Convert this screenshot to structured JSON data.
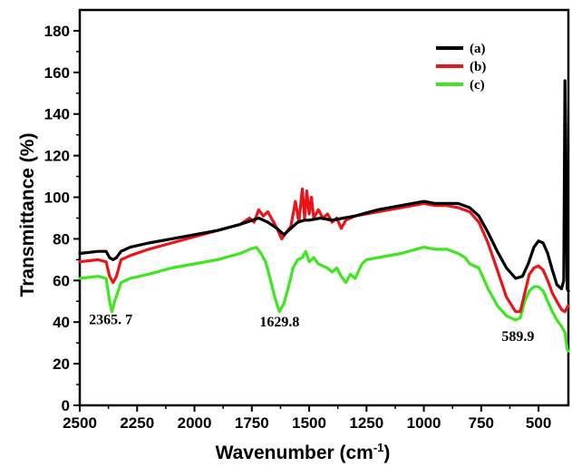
{
  "chart_data": {
    "type": "line",
    "xlabel": "Wavenumber (cm",
    "xlabel_sup": "-1",
    "xlabel_suffix": ")",
    "ylabel": "Transmittance (%)",
    "xlim": [
      2500,
      370
    ],
    "ylim": [
      0,
      190
    ],
    "x_reversed": true,
    "x_ticks": [
      2500,
      2250,
      2000,
      1750,
      1500,
      1250,
      1000,
      750,
      500
    ],
    "y_ticks": [
      0,
      20,
      40,
      60,
      80,
      100,
      120,
      140,
      160,
      180
    ],
    "grid": false,
    "legend_position": "top-right",
    "series": [
      {
        "name": "(a)",
        "color": "#000000",
        "points": [
          [
            2500,
            73
          ],
          [
            2420,
            74
          ],
          [
            2385,
            74
          ],
          [
            2370,
            71
          ],
          [
            2355,
            70
          ],
          [
            2340,
            71
          ],
          [
            2320,
            74
          ],
          [
            2280,
            76
          ],
          [
            2200,
            78
          ],
          [
            2100,
            80
          ],
          [
            2000,
            82
          ],
          [
            1900,
            84
          ],
          [
            1800,
            87
          ],
          [
            1720,
            90
          ],
          [
            1680,
            88
          ],
          [
            1640,
            85
          ],
          [
            1610,
            82
          ],
          [
            1580,
            85
          ],
          [
            1550,
            88
          ],
          [
            1520,
            89
          ],
          [
            1500,
            89
          ],
          [
            1450,
            90
          ],
          [
            1400,
            89
          ],
          [
            1350,
            90
          ],
          [
            1300,
            91
          ],
          [
            1200,
            94
          ],
          [
            1100,
            96
          ],
          [
            1000,
            98
          ],
          [
            950,
            97
          ],
          [
            900,
            97
          ],
          [
            850,
            97
          ],
          [
            800,
            95
          ],
          [
            760,
            91
          ],
          [
            720,
            83
          ],
          [
            680,
            74
          ],
          [
            640,
            66
          ],
          [
            600,
            61
          ],
          [
            570,
            62
          ],
          [
            545,
            68
          ],
          [
            520,
            76
          ],
          [
            500,
            79
          ],
          [
            480,
            78
          ],
          [
            460,
            73
          ],
          [
            440,
            65
          ],
          [
            420,
            58
          ],
          [
            400,
            56
          ],
          [
            390,
            60
          ],
          [
            385,
            156
          ],
          [
            380,
            110
          ],
          [
            375,
            56
          ],
          [
            370,
            55
          ]
        ]
      },
      {
        "name": "(b)",
        "color": "#e8151b",
        "points": [
          [
            2500,
            69
          ],
          [
            2420,
            70
          ],
          [
            2385,
            69
          ],
          [
            2370,
            62
          ],
          [
            2355,
            59
          ],
          [
            2340,
            62
          ],
          [
            2320,
            70
          ],
          [
            2280,
            72
          ],
          [
            2200,
            75
          ],
          [
            2100,
            78
          ],
          [
            2000,
            81
          ],
          [
            1900,
            84
          ],
          [
            1800,
            87
          ],
          [
            1760,
            90
          ],
          [
            1740,
            88
          ],
          [
            1720,
            94
          ],
          [
            1700,
            91
          ],
          [
            1680,
            93
          ],
          [
            1660,
            89
          ],
          [
            1640,
            85
          ],
          [
            1620,
            80
          ],
          [
            1600,
            83
          ],
          [
            1580,
            86
          ],
          [
            1560,
            98
          ],
          [
            1545,
            88
          ],
          [
            1530,
            104
          ],
          [
            1520,
            90
          ],
          [
            1510,
            103
          ],
          [
            1500,
            92
          ],
          [
            1490,
            100
          ],
          [
            1480,
            90
          ],
          [
            1460,
            94
          ],
          [
            1440,
            90
          ],
          [
            1420,
            92
          ],
          [
            1400,
            88
          ],
          [
            1380,
            90
          ],
          [
            1360,
            85
          ],
          [
            1340,
            89
          ],
          [
            1300,
            91
          ],
          [
            1250,
            92
          ],
          [
            1200,
            93
          ],
          [
            1100,
            95
          ],
          [
            1000,
            97
          ],
          [
            950,
            96
          ],
          [
            900,
            96
          ],
          [
            850,
            95
          ],
          [
            800,
            93
          ],
          [
            760,
            88
          ],
          [
            720,
            78
          ],
          [
            680,
            65
          ],
          [
            640,
            52
          ],
          [
            600,
            45
          ],
          [
            580,
            45
          ],
          [
            560,
            54
          ],
          [
            540,
            63
          ],
          [
            520,
            66
          ],
          [
            500,
            67
          ],
          [
            480,
            65
          ],
          [
            460,
            60
          ],
          [
            440,
            54
          ],
          [
            420,
            50
          ],
          [
            400,
            46
          ],
          [
            385,
            45
          ],
          [
            375,
            47
          ],
          [
            370,
            48
          ]
        ]
      },
      {
        "name": "(c)",
        "color": "#3ee61e",
        "points": [
          [
            2500,
            61
          ],
          [
            2420,
            62
          ],
          [
            2385,
            61
          ],
          [
            2370,
            50
          ],
          [
            2360,
            45
          ],
          [
            2345,
            51
          ],
          [
            2320,
            59
          ],
          [
            2280,
            61
          ],
          [
            2200,
            63
          ],
          [
            2100,
            66
          ],
          [
            2000,
            68
          ],
          [
            1900,
            70
          ],
          [
            1800,
            73
          ],
          [
            1760,
            75
          ],
          [
            1730,
            76
          ],
          [
            1710,
            73
          ],
          [
            1690,
            69
          ],
          [
            1670,
            61
          ],
          [
            1650,
            52
          ],
          [
            1630,
            45
          ],
          [
            1610,
            49
          ],
          [
            1590,
            57
          ],
          [
            1570,
            66
          ],
          [
            1550,
            70
          ],
          [
            1530,
            71
          ],
          [
            1515,
            74
          ],
          [
            1500,
            69
          ],
          [
            1480,
            71
          ],
          [
            1460,
            68
          ],
          [
            1440,
            67
          ],
          [
            1420,
            66
          ],
          [
            1400,
            64
          ],
          [
            1380,
            66
          ],
          [
            1360,
            62
          ],
          [
            1340,
            59
          ],
          [
            1320,
            63
          ],
          [
            1300,
            61
          ],
          [
            1270,
            68
          ],
          [
            1250,
            70
          ],
          [
            1200,
            71
          ],
          [
            1100,
            73
          ],
          [
            1000,
            76
          ],
          [
            950,
            75
          ],
          [
            900,
            75
          ],
          [
            850,
            73
          ],
          [
            820,
            71
          ],
          [
            800,
            68
          ],
          [
            760,
            66
          ],
          [
            720,
            56
          ],
          [
            680,
            48
          ],
          [
            640,
            43
          ],
          [
            600,
            41
          ],
          [
            580,
            42
          ],
          [
            560,
            50
          ],
          [
            540,
            55
          ],
          [
            520,
            57
          ],
          [
            500,
            57
          ],
          [
            480,
            55
          ],
          [
            460,
            50
          ],
          [
            440,
            45
          ],
          [
            420,
            41
          ],
          [
            400,
            38
          ],
          [
            385,
            35
          ],
          [
            375,
            27
          ],
          [
            370,
            26
          ]
        ]
      }
    ],
    "annotations": [
      {
        "text": "2365. 7",
        "x": 2365,
        "y": 39
      },
      {
        "text": "1629.8",
        "x": 1629,
        "y": 38
      },
      {
        "text": "589.9",
        "x": 590,
        "y": 31
      }
    ]
  }
}
